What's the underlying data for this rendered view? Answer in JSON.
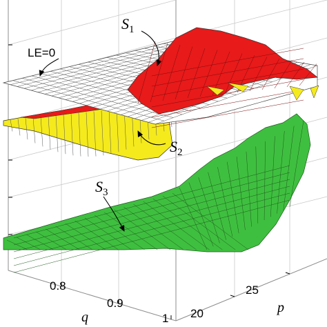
{
  "chart_data": {
    "type": "surface3d",
    "title": "",
    "axes": {
      "q": {
        "label": "q",
        "ticks": [
          "0.8",
          "0.9",
          "1"
        ],
        "range": [
          0.7,
          1.0
        ]
      },
      "p": {
        "label": "p",
        "ticks": [
          "20",
          "25"
        ],
        "range": [
          20,
          30
        ]
      },
      "z": {
        "label": "",
        "ticks": []
      }
    },
    "surfaces": [
      {
        "name": "LE=0",
        "label_text": "LE=0",
        "kind": "reference-plane",
        "color": "#ffffff",
        "edge_color": "#555555"
      },
      {
        "name": "S1",
        "label_main": "S",
        "label_sub": "1",
        "color": "#e81a1a"
      },
      {
        "name": "S2",
        "label_main": "S",
        "label_sub": "2",
        "color": "#f5ea1c"
      },
      {
        "name": "S3",
        "label_main": "S",
        "label_sub": "3",
        "color": "#3fbf3f"
      }
    ],
    "grid": true,
    "box_color": "#8c8c8c"
  }
}
